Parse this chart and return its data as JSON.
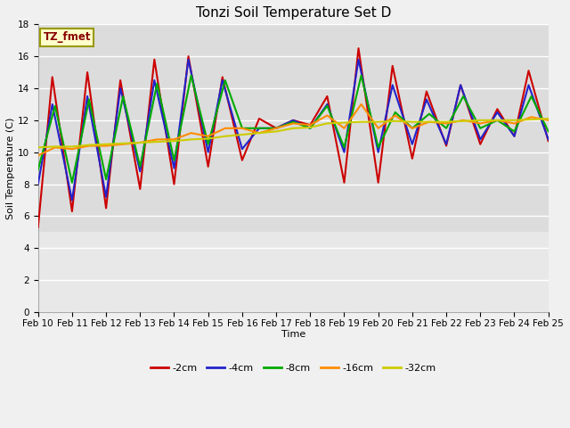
{
  "title": "Tonzi Soil Temperature Set D",
  "xlabel": "Time",
  "ylabel": "Soil Temperature (C)",
  "ylim": [
    0,
    18
  ],
  "yticks": [
    0,
    2,
    4,
    6,
    8,
    10,
    12,
    14,
    16,
    18
  ],
  "xlim": [
    0,
    15
  ],
  "xtick_labels": [
    "Feb 10",
    "Feb 11",
    "Feb 12",
    "Feb 13",
    "Feb 14",
    "Feb 15",
    "Feb 16",
    "Feb 17",
    "Feb 18",
    "Feb 19",
    "Feb 20",
    "Feb 21",
    "Feb 22",
    "Feb 23",
    "Feb 24",
    "Feb 25"
  ],
  "legend_label": "TZ_fmet",
  "series_labels": [
    "-2cm",
    "-4cm",
    "-8cm",
    "-16cm",
    "-32cm"
  ],
  "series_colors": [
    "#cc0000",
    "#2222cc",
    "#00aa00",
    "#ff8c00",
    "#cccc00"
  ],
  "fig_bg_color": "#f0f0f0",
  "plot_bg_upper": "#dcdcdc",
  "plot_bg_lower": "#e8e8e8",
  "grid_color": "#ffffff",
  "anno_box_color": "#ffffcc",
  "anno_text_color": "#880000",
  "anno_border_color": "#999900",
  "title_fontsize": 11,
  "axis_label_fontsize": 8,
  "tick_fontsize": 7.5,
  "legend_fontsize": 8,
  "line_width": 1.5,
  "data_y_threshold": 5.0,
  "x_2cm": [
    0.0,
    0.42,
    1.0,
    1.45,
    2.0,
    2.42,
    3.0,
    3.42,
    4.0,
    4.42,
    5.0,
    5.42,
    6.0,
    6.5,
    7.0,
    7.5,
    8.0,
    8.5,
    9.0,
    9.42,
    10.0,
    10.42,
    11.0,
    11.42,
    12.0,
    12.42,
    13.0,
    13.5,
    14.0,
    14.42,
    15.0
  ],
  "y_2cm": [
    5.3,
    14.7,
    6.3,
    15.0,
    6.5,
    14.5,
    7.7,
    15.8,
    8.0,
    16.0,
    9.1,
    14.7,
    9.5,
    12.1,
    11.5,
    12.0,
    11.7,
    13.5,
    8.1,
    16.5,
    8.1,
    15.4,
    9.6,
    13.8,
    10.4,
    14.2,
    10.5,
    12.7,
    11.0,
    15.1,
    10.7
  ],
  "x_4cm": [
    0.0,
    0.42,
    1.0,
    1.45,
    2.0,
    2.42,
    3.0,
    3.42,
    4.0,
    4.42,
    5.0,
    5.42,
    6.0,
    6.5,
    7.0,
    7.5,
    8.0,
    8.5,
    9.0,
    9.42,
    10.0,
    10.42,
    11.0,
    11.42,
    12.0,
    12.42,
    13.0,
    13.5,
    14.0,
    14.42,
    15.0
  ],
  "y_4cm": [
    8.0,
    13.0,
    7.0,
    13.5,
    7.2,
    14.0,
    8.8,
    14.5,
    9.0,
    15.8,
    10.0,
    14.5,
    10.2,
    11.5,
    11.5,
    12.0,
    11.5,
    13.0,
    10.0,
    15.8,
    10.0,
    14.2,
    10.5,
    13.3,
    10.5,
    14.2,
    10.8,
    12.5,
    11.0,
    14.2,
    10.8
  ],
  "x_8cm": [
    0.0,
    0.5,
    1.0,
    1.5,
    2.0,
    2.5,
    3.0,
    3.5,
    4.0,
    4.5,
    5.0,
    5.5,
    6.0,
    6.5,
    7.0,
    7.5,
    8.0,
    8.5,
    9.0,
    9.5,
    10.0,
    10.5,
    11.0,
    11.5,
    12.0,
    12.5,
    13.0,
    13.5,
    14.0,
    14.5,
    15.0
  ],
  "y_8cm": [
    8.9,
    12.9,
    8.1,
    13.3,
    8.3,
    13.5,
    9.1,
    14.3,
    9.5,
    14.8,
    10.5,
    14.5,
    11.5,
    11.5,
    11.5,
    11.9,
    11.5,
    12.9,
    10.3,
    14.8,
    10.3,
    12.5,
    11.5,
    12.4,
    11.5,
    13.5,
    11.5,
    12.0,
    11.3,
    13.5,
    11.3
  ],
  "x_16cm": [
    0.0,
    0.5,
    1.0,
    1.5,
    2.0,
    2.5,
    3.0,
    3.5,
    4.0,
    4.5,
    5.0,
    5.5,
    6.0,
    6.5,
    7.0,
    7.5,
    8.0,
    8.5,
    9.0,
    9.5,
    10.0,
    10.5,
    11.0,
    11.5,
    12.0,
    12.5,
    13.0,
    13.5,
    14.0,
    14.5,
    15.0
  ],
  "y_16cm": [
    9.8,
    10.3,
    10.2,
    10.4,
    10.4,
    10.5,
    10.6,
    10.8,
    10.8,
    11.2,
    11.0,
    11.5,
    11.5,
    11.2,
    11.5,
    11.8,
    11.7,
    12.3,
    11.5,
    13.0,
    11.5,
    12.3,
    11.5,
    11.9,
    11.8,
    12.0,
    11.8,
    12.0,
    11.8,
    12.2,
    12.0
  ],
  "x_32cm": [
    0.0,
    0.5,
    1.0,
    1.5,
    2.0,
    2.5,
    3.0,
    3.5,
    4.0,
    4.5,
    5.0,
    5.5,
    6.0,
    6.5,
    7.0,
    7.5,
    8.0,
    8.5,
    9.0,
    9.5,
    10.0,
    10.5,
    11.0,
    11.5,
    12.0,
    12.5,
    13.0,
    13.5,
    14.0,
    14.5,
    15.0
  ],
  "y_32cm": [
    10.3,
    10.35,
    10.35,
    10.45,
    10.5,
    10.55,
    10.6,
    10.65,
    10.7,
    10.8,
    10.85,
    11.0,
    11.1,
    11.2,
    11.3,
    11.5,
    11.55,
    11.8,
    11.85,
    11.9,
    11.9,
    11.95,
    11.9,
    11.9,
    11.9,
    11.95,
    12.0,
    12.0,
    12.0,
    12.05,
    12.1
  ]
}
